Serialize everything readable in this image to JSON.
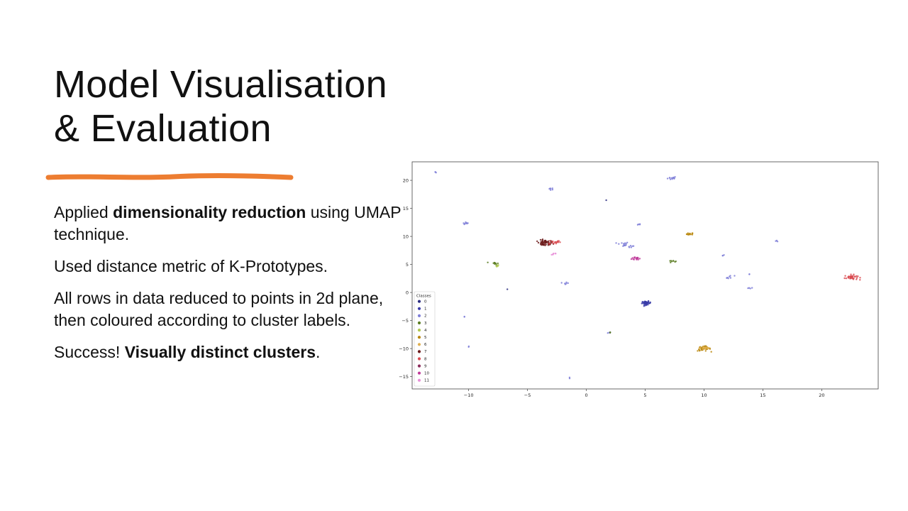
{
  "slide": {
    "title_line1": "Model Visualisation",
    "title_line2": "& Evaluation",
    "accent_color": "#ED7D31",
    "paragraphs": [
      {
        "pre": "Applied ",
        "bold": "dimensionality reduction",
        "post": " using UMAP technique."
      },
      {
        "pre": "Used distance metric of K-Prototypes.",
        "bold": "",
        "post": ""
      },
      {
        "pre": "All rows in data reduced to points in 2d plane, then coloured according to cluster labels.",
        "bold": "",
        "post": ""
      },
      {
        "pre": "Success! ",
        "bold": "Visually distinct clusters",
        "post": "."
      }
    ]
  },
  "chart_data": {
    "type": "scatter",
    "title": "",
    "xlabel": "",
    "ylabel": "",
    "xlim": [
      -14.8,
      24.8
    ],
    "ylim": [
      -17.2,
      23.3
    ],
    "xticks": [
      -10,
      -5,
      0,
      5,
      10,
      15,
      20
    ],
    "xtick_labels": [
      "−10",
      "−5",
      "0",
      "5",
      "10",
      "15",
      "20"
    ],
    "yticks": [
      -15,
      -10,
      -5,
      0,
      5,
      10,
      15,
      20
    ],
    "ytick_labels": [
      "−15",
      "−10",
      "−5",
      "0",
      "5",
      "10",
      "15",
      "20"
    ],
    "grid": false,
    "legend": {
      "title": "Classes",
      "position": "lower-left",
      "labels": [
        "0",
        "1",
        "2",
        "3",
        "4",
        "5",
        "6",
        "7",
        "8",
        "9",
        "10",
        "11"
      ]
    },
    "classes": [
      {
        "name": "0",
        "color": "#2b2d80"
      },
      {
        "name": "1",
        "color": "#3a3ca8"
      },
      {
        "name": "2",
        "color": "#7f7fd8"
      },
      {
        "name": "3",
        "color": "#5a7d22"
      },
      {
        "name": "4",
        "color": "#b0c850"
      },
      {
        "name": "5",
        "color": "#b8860b"
      },
      {
        "name": "6",
        "color": "#e0b050"
      },
      {
        "name": "7",
        "color": "#6b1a1a"
      },
      {
        "name": "8",
        "color": "#d94a50"
      },
      {
        "name": "9",
        "color": "#8a2a5a"
      },
      {
        "name": "10",
        "color": "#c03a9a"
      },
      {
        "name": "11",
        "color": "#e890d8"
      }
    ],
    "clusters": [
      {
        "class": 2,
        "x": -12.8,
        "y": 21.4,
        "spread": 0.15,
        "n": 3
      },
      {
        "class": 2,
        "x": 7.3,
        "y": 20.4,
        "spread": 0.35,
        "n": 12
      },
      {
        "class": 2,
        "x": -3.0,
        "y": 18.5,
        "spread": 0.2,
        "n": 6
      },
      {
        "class": 0,
        "x": 1.7,
        "y": 16.5,
        "spread": 0.05,
        "n": 1
      },
      {
        "class": 2,
        "x": -10.2,
        "y": 12.3,
        "spread": 0.25,
        "n": 8
      },
      {
        "class": 2,
        "x": 4.5,
        "y": 12.1,
        "spread": 0.15,
        "n": 4
      },
      {
        "class": 5,
        "x": 8.8,
        "y": 10.4,
        "spread": 0.25,
        "n": 12
      },
      {
        "class": 2,
        "x": 16.2,
        "y": 9.2,
        "spread": 0.12,
        "n": 3
      },
      {
        "class": 7,
        "x": -3.5,
        "y": 8.8,
        "spread": 0.6,
        "n": 55
      },
      {
        "class": 8,
        "x": -2.7,
        "y": 9.0,
        "spread": 0.45,
        "n": 18
      },
      {
        "class": 2,
        "x": 3.1,
        "y": 8.6,
        "spread": 0.45,
        "n": 15
      },
      {
        "class": 2,
        "x": 3.8,
        "y": 8.2,
        "spread": 0.3,
        "n": 6
      },
      {
        "class": 11,
        "x": -2.8,
        "y": 6.9,
        "spread": 0.3,
        "n": 6
      },
      {
        "class": 10,
        "x": 4.3,
        "y": 6.1,
        "spread": 0.4,
        "n": 18
      },
      {
        "class": 2,
        "x": 11.6,
        "y": 6.6,
        "spread": 0.12,
        "n": 3
      },
      {
        "class": 3,
        "x": -7.8,
        "y": 5.2,
        "spread": 0.3,
        "n": 10
      },
      {
        "class": 4,
        "x": -7.5,
        "y": 4.8,
        "spread": 0.2,
        "n": 5
      },
      {
        "class": 3,
        "x": 7.3,
        "y": 5.6,
        "spread": 0.25,
        "n": 8
      },
      {
        "class": 8,
        "x": 22.5,
        "y": 2.7,
        "spread": 0.5,
        "n": 40
      },
      {
        "class": 2,
        "x": 12.2,
        "y": 2.7,
        "spread": 0.35,
        "n": 8
      },
      {
        "class": 2,
        "x": 13.8,
        "y": 3.3,
        "spread": 0.1,
        "n": 2
      },
      {
        "class": 2,
        "x": -1.7,
        "y": 1.7,
        "spread": 0.25,
        "n": 6
      },
      {
        "class": 2,
        "x": 13.9,
        "y": 0.8,
        "spread": 0.2,
        "n": 4
      },
      {
        "class": 0,
        "x": -6.7,
        "y": 0.6,
        "spread": 0.05,
        "n": 1
      },
      {
        "class": 1,
        "x": 5.1,
        "y": -1.9,
        "spread": 0.35,
        "n": 45
      },
      {
        "class": 2,
        "x": -10.4,
        "y": -4.3,
        "spread": 0.08,
        "n": 2
      },
      {
        "class": 2,
        "x": 2.0,
        "y": -7.2,
        "spread": 0.2,
        "n": 4
      },
      {
        "class": 3,
        "x": 2.0,
        "y": -7.1,
        "spread": 0.1,
        "n": 2
      },
      {
        "class": 2,
        "x": -10.0,
        "y": -9.7,
        "spread": 0.1,
        "n": 2
      },
      {
        "class": 5,
        "x": 10.0,
        "y": -10.0,
        "spread": 0.5,
        "n": 40
      },
      {
        "class": 6,
        "x": 10.1,
        "y": -9.9,
        "spread": 0.4,
        "n": 18
      },
      {
        "class": 2,
        "x": -1.4,
        "y": -15.3,
        "spread": 0.1,
        "n": 2
      }
    ]
  }
}
